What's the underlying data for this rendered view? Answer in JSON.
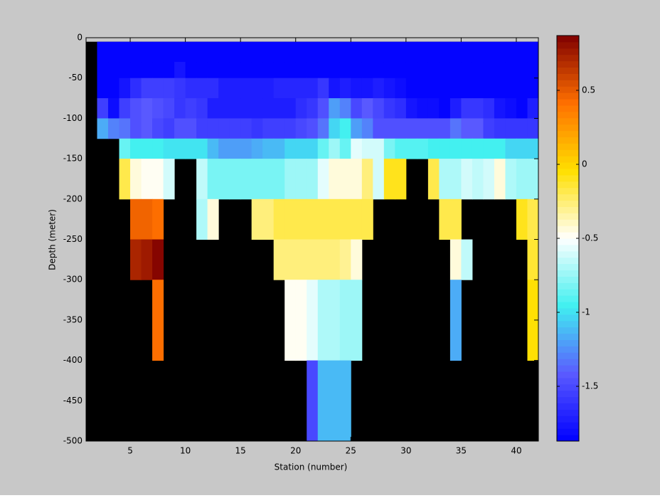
{
  "chart_data": {
    "type": "heatmap",
    "xlabel": "Station (number)",
    "ylabel": "Depth (meter)",
    "xlim": [
      1,
      42
    ],
    "ylim": [
      -500,
      0
    ],
    "xticks": [
      5,
      10,
      15,
      20,
      25,
      30,
      35,
      40
    ],
    "yticks": [
      0,
      -50,
      -100,
      -150,
      -200,
      -250,
      -300,
      -350,
      -400,
      -450,
      -500
    ],
    "x_edges": [
      2,
      3,
      4,
      5,
      6,
      7,
      8,
      9,
      10,
      11,
      12,
      13,
      14,
      15,
      16,
      17,
      18,
      19,
      20,
      21,
      22,
      23,
      24,
      25,
      26,
      27,
      28,
      29,
      30,
      31,
      32,
      33,
      34,
      35,
      36,
      37,
      38,
      39,
      40,
      41,
      42
    ],
    "y_edges": [
      -5,
      -30,
      -50,
      -75,
      -100,
      -125,
      -150,
      -200,
      -250,
      -300,
      -400,
      -500
    ],
    "clim": [
      -1.87,
      0.87
    ],
    "cticks": [
      0.5,
      0,
      -0.5,
      -1,
      -1.5
    ],
    "colormap": [
      "#0000ff",
      "#5a5aff",
      "#40f0f0",
      "#ffffff",
      "#ffe000",
      "#ff7000",
      "#800000"
    ],
    "background": "#c8c8c8",
    "missing_color": "#000000",
    "z": [
      [
        -1.85,
        -1.85,
        -1.85,
        -1.85,
        -1.85,
        -1.85,
        -1.85,
        -1.85,
        -1.85,
        -1.85,
        -1.85,
        -1.85,
        -1.85,
        -1.85,
        -1.85,
        -1.85,
        -1.85,
        -1.85,
        -1.85,
        -1.85,
        -1.85,
        -1.85,
        -1.85,
        -1.85,
        -1.85,
        -1.85,
        -1.85,
        -1.85,
        -1.85,
        -1.85,
        -1.85,
        -1.85,
        -1.85,
        -1.85,
        -1.85,
        -1.85,
        -1.85,
        -1.85,
        -1.85,
        -1.85
      ],
      [
        -1.85,
        -1.85,
        -1.85,
        -1.85,
        -1.85,
        -1.85,
        -1.85,
        -1.78,
        -1.85,
        -1.85,
        -1.85,
        -1.85,
        -1.85,
        -1.85,
        -1.85,
        -1.85,
        -1.85,
        -1.85,
        -1.85,
        -1.85,
        -1.85,
        -1.85,
        -1.85,
        -1.85,
        -1.85,
        -1.85,
        -1.85,
        -1.85,
        -1.85,
        -1.85,
        -1.85,
        -1.85,
        -1.85,
        -1.85,
        -1.85,
        -1.85,
        -1.85,
        -1.85,
        -1.85,
        -1.85
      ],
      [
        -1.85,
        -1.85,
        -1.75,
        -1.65,
        -1.55,
        -1.55,
        -1.55,
        -1.6,
        -1.65,
        -1.65,
        -1.65,
        -1.7,
        -1.7,
        -1.7,
        -1.72,
        -1.72,
        -1.68,
        -1.68,
        -1.68,
        -1.68,
        -1.6,
        -1.75,
        -1.7,
        -1.75,
        -1.75,
        -1.7,
        -1.75,
        -1.8,
        -1.85,
        -1.85,
        -1.85,
        -1.85,
        -1.85,
        -1.85,
        -1.85,
        -1.85,
        -1.85,
        -1.85,
        -1.85,
        -1.85
      ],
      [
        -1.55,
        -1.8,
        -1.55,
        -1.45,
        -1.4,
        -1.45,
        -1.5,
        -1.6,
        -1.55,
        -1.6,
        -1.7,
        -1.7,
        -1.7,
        -1.7,
        -1.7,
        -1.7,
        -1.7,
        -1.7,
        -1.65,
        -1.6,
        -1.45,
        -1.2,
        -1.3,
        -1.5,
        -1.4,
        -1.5,
        -1.6,
        -1.65,
        -1.75,
        -1.8,
        -1.8,
        -1.85,
        -1.7,
        -1.6,
        -1.6,
        -1.65,
        -1.75,
        -1.8,
        -1.85,
        -1.7
      ],
      [
        -1.15,
        -1.3,
        -1.35,
        -1.45,
        -1.4,
        -1.5,
        -1.55,
        -1.45,
        -1.45,
        -1.55,
        -1.55,
        -1.55,
        -1.55,
        -1.55,
        -1.6,
        -1.55,
        -1.55,
        -1.55,
        -1.5,
        -1.45,
        -1.35,
        -1.05,
        -0.95,
        -1.2,
        -1.3,
        -1.45,
        -1.45,
        -1.45,
        -1.45,
        -1.45,
        -1.45,
        -1.45,
        -1.35,
        -1.4,
        -1.4,
        -1.55,
        -1.6,
        -1.6,
        -1.6,
        -1.6
      ],
      [
        null,
        null,
        -0.85,
        -0.95,
        -0.95,
        -0.95,
        -1.0,
        -1.0,
        -1.0,
        -1.0,
        -1.1,
        -1.2,
        -1.2,
        -1.2,
        -1.15,
        -1.1,
        -1.1,
        -1.05,
        -1.05,
        -1.05,
        -0.85,
        -0.75,
        -0.85,
        -0.55,
        -0.6,
        -0.6,
        -0.8,
        -0.9,
        -0.9,
        -0.9,
        -0.95,
        -0.95,
        -0.95,
        -0.95,
        -0.95,
        -0.95,
        -0.95,
        -1.05,
        -1.05,
        -1.05
      ],
      [
        null,
        null,
        -0.2,
        -0.45,
        -0.5,
        -0.5,
        -0.6,
        null,
        null,
        -0.65,
        -0.8,
        -0.8,
        -0.8,
        -0.8,
        -0.8,
        -0.8,
        -0.8,
        -0.75,
        -0.75,
        -0.75,
        -0.55,
        -0.45,
        -0.45,
        -0.45,
        -0.25,
        -0.6,
        -0.1,
        -0.1,
        null,
        null,
        -0.2,
        -0.7,
        -0.7,
        -0.6,
        -0.65,
        -0.6,
        -0.45,
        -0.7,
        -0.75,
        -0.75
      ],
      [
        null,
        null,
        null,
        0.45,
        0.45,
        0.4,
        null,
        null,
        null,
        -0.7,
        -0.45,
        null,
        null,
        null,
        -0.25,
        -0.25,
        -0.2,
        -0.2,
        -0.2,
        -0.2,
        -0.2,
        -0.2,
        -0.2,
        -0.2,
        -0.2,
        null,
        null,
        null,
        null,
        null,
        null,
        -0.2,
        -0.2,
        null,
        null,
        null,
        null,
        null,
        -0.1,
        -0.2
      ],
      [
        null,
        null,
        null,
        0.7,
        0.75,
        0.85,
        null,
        null,
        null,
        null,
        null,
        null,
        null,
        null,
        null,
        null,
        -0.25,
        -0.25,
        -0.25,
        -0.25,
        -0.25,
        -0.25,
        -0.3,
        -0.45,
        null,
        null,
        null,
        null,
        null,
        null,
        null,
        null,
        -0.45,
        -0.65,
        null,
        null,
        null,
        null,
        null,
        -0.15
      ],
      [
        null,
        null,
        null,
        null,
        null,
        0.4,
        null,
        null,
        null,
        null,
        null,
        null,
        null,
        null,
        null,
        null,
        null,
        -0.5,
        -0.5,
        -0.55,
        -0.7,
        -0.7,
        -0.75,
        -0.75,
        null,
        null,
        null,
        null,
        null,
        null,
        null,
        null,
        -1.15,
        null,
        null,
        null,
        null,
        null,
        null,
        -0.05
      ],
      [
        null,
        null,
        null,
        null,
        null,
        null,
        null,
        null,
        null,
        null,
        null,
        null,
        null,
        null,
        null,
        null,
        null,
        null,
        null,
        -1.5,
        -1.1,
        -1.1,
        -1.1,
        null,
        null,
        null,
        null,
        null,
        null,
        null,
        null,
        null,
        null,
        null,
        null,
        null,
        null,
        null,
        null,
        null
      ]
    ]
  }
}
